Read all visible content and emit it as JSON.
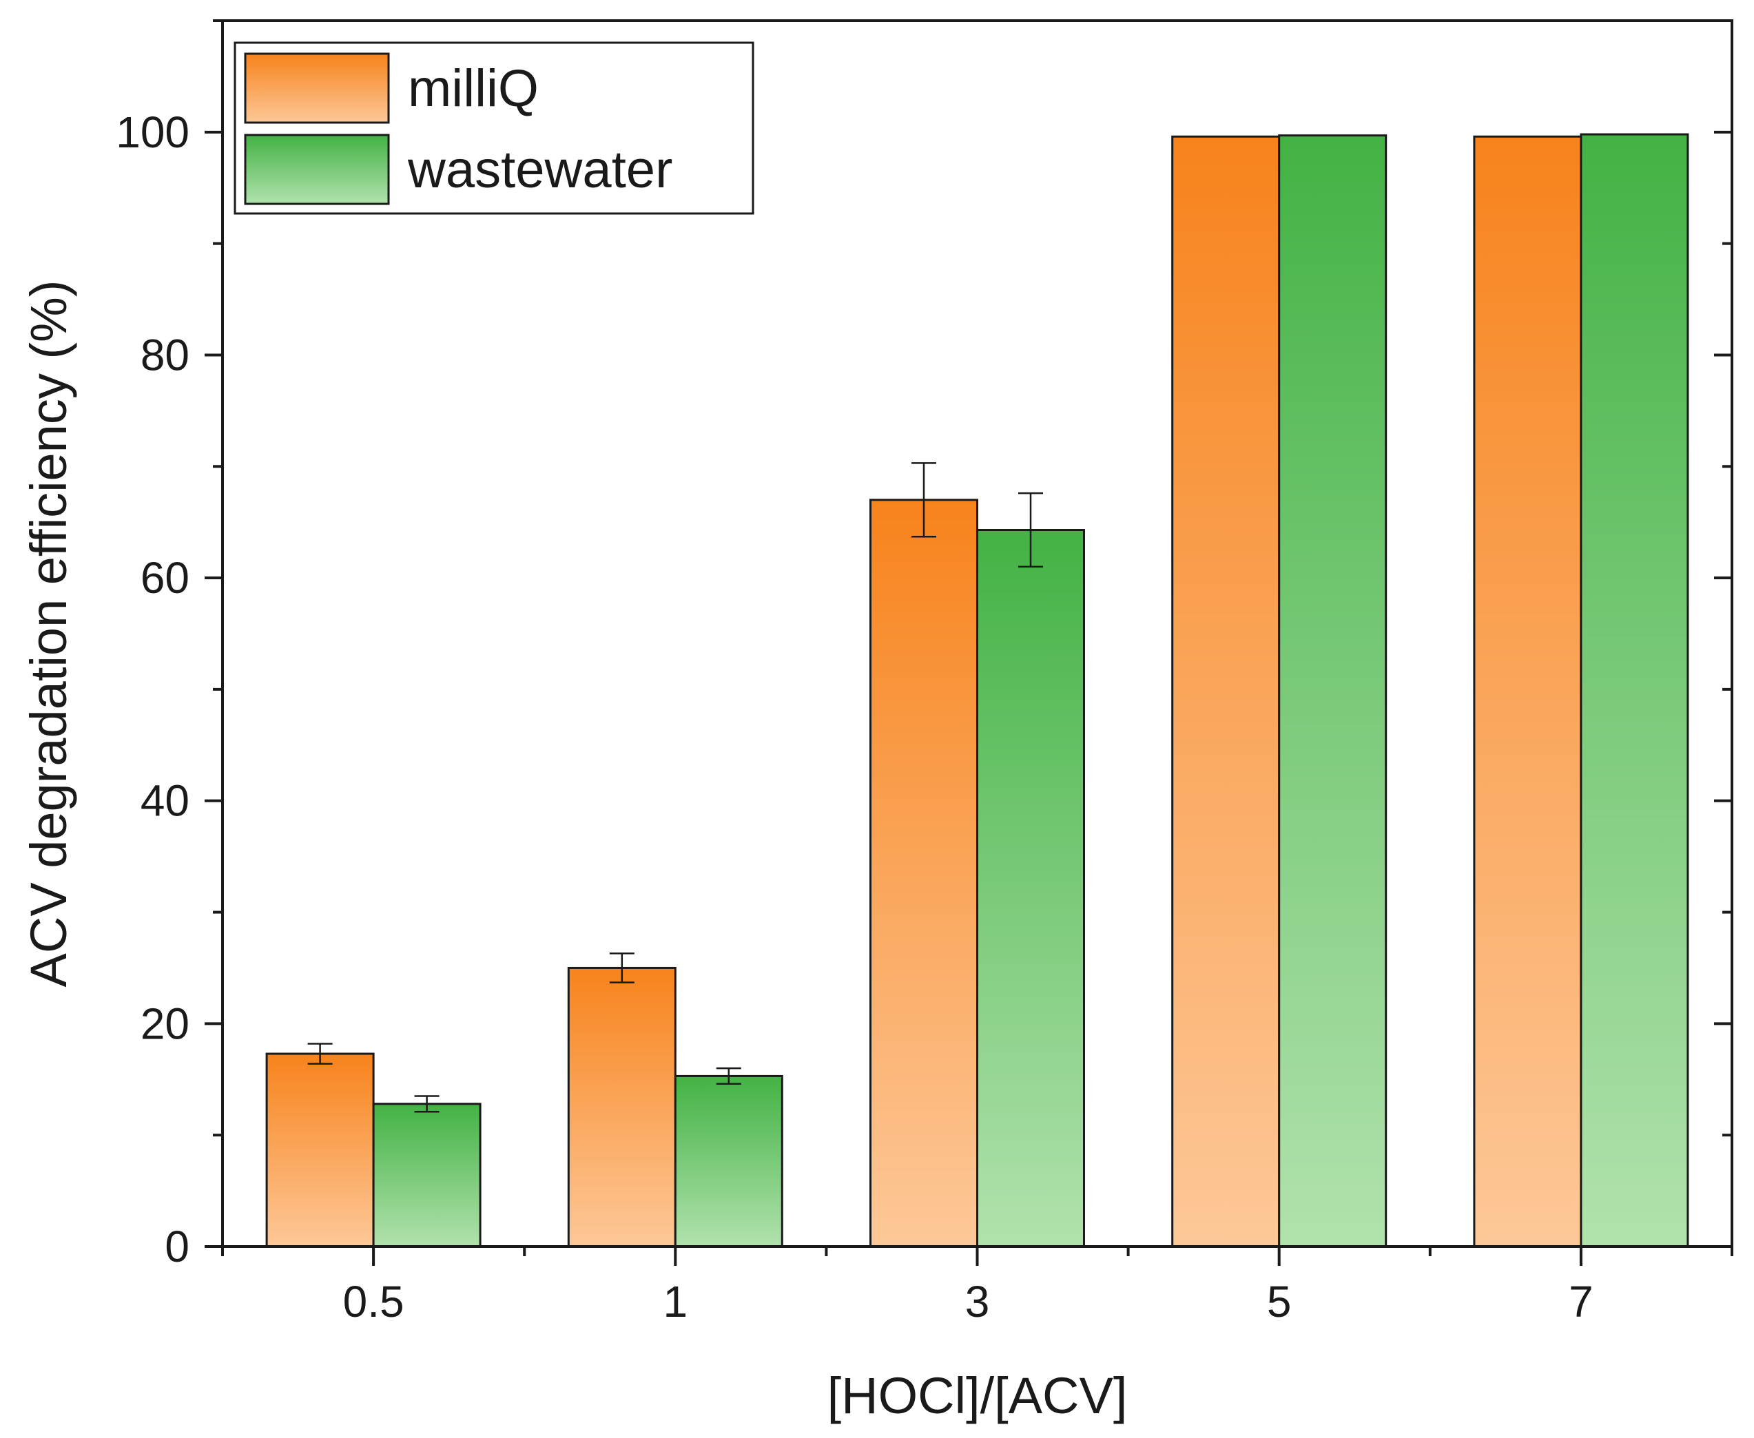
{
  "chart_data": {
    "type": "bar",
    "title": "",
    "xlabel": "[HOCl]/[ACV]",
    "ylabel": "ACV degradation efficiency (%)",
    "categories": [
      "0.5",
      "1",
      "3",
      "5",
      "7"
    ],
    "ylim": [
      0,
      110
    ],
    "yticks": [
      "0",
      "20",
      "40",
      "60",
      "80",
      "100"
    ],
    "grid": false,
    "legend_position": "top-left",
    "series": [
      {
        "name": "milliQ",
        "values": [
          17.3,
          25.0,
          67.0,
          99.6,
          99.6
        ],
        "errors": [
          0.9,
          1.3,
          3.3,
          0,
          0
        ],
        "color_top": "#f7831c",
        "color_bottom": "#fdc898"
      },
      {
        "name": "wastewater",
        "values": [
          12.8,
          15.3,
          64.3,
          99.7,
          99.8
        ],
        "errors": [
          0.7,
          0.7,
          3.3,
          0,
          0
        ],
        "color_top": "#43b244",
        "color_bottom": "#b1e2ad"
      }
    ]
  }
}
